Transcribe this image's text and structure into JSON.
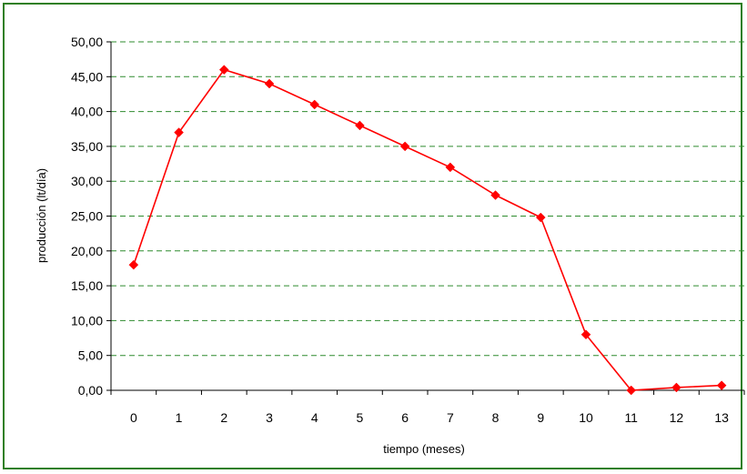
{
  "chart_data": {
    "type": "line",
    "title": "",
    "xlabel": "tiempo (meses)",
    "ylabel": "producción (lt/día)",
    "x": [
      "0",
      "1",
      "2",
      "3",
      "4",
      "5",
      "6",
      "7",
      "8",
      "9",
      "10",
      "11",
      "12",
      "13"
    ],
    "series": [
      {
        "values": [
          18,
          37,
          46,
          44,
          41,
          38,
          35,
          32,
          28,
          24.8,
          8,
          0,
          0.4,
          0.7
        ]
      }
    ],
    "ylim": [
      0,
      50
    ],
    "yticks": [
      0,
      5,
      10,
      15,
      20,
      25,
      30,
      35,
      40,
      45,
      50
    ],
    "ytick_labels": [
      "0,00",
      "5,00",
      "10,00",
      "15,00",
      "20,00",
      "25,00",
      "30,00",
      "35,00",
      "40,00",
      "45,00",
      "50,00"
    ],
    "grid": true,
    "colors": {
      "series": "#ff0000",
      "grid": "#2e8b2e",
      "frame": "#2f7f1f",
      "axis": "#000000"
    }
  }
}
